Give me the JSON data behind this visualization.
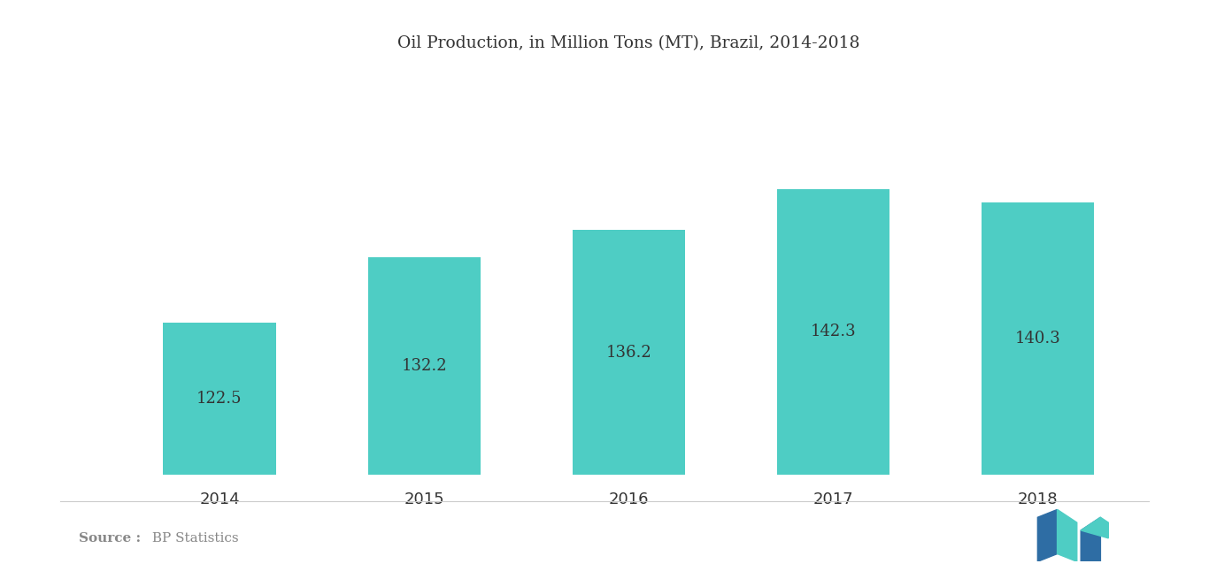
{
  "title": "Oil Production, in Million Tons (MT), Brazil, 2014-2018",
  "categories": [
    "2014",
    "2015",
    "2016",
    "2017",
    "2018"
  ],
  "values": [
    122.5,
    132.2,
    136.2,
    142.3,
    140.3
  ],
  "bar_color": "#4ECDC4",
  "background_color": "#ffffff",
  "label_color": "#333333",
  "source_color": "#888888",
  "title_fontsize": 13.5,
  "label_fontsize": 13,
  "tick_fontsize": 13,
  "source_fontsize": 11,
  "source_text": "Source : BP Statistics",
  "ylim_min": 100,
  "ylim_max": 160,
  "bar_width": 0.55,
  "logo_color1": "#2E6DA4",
  "logo_color2": "#4ECDC4"
}
